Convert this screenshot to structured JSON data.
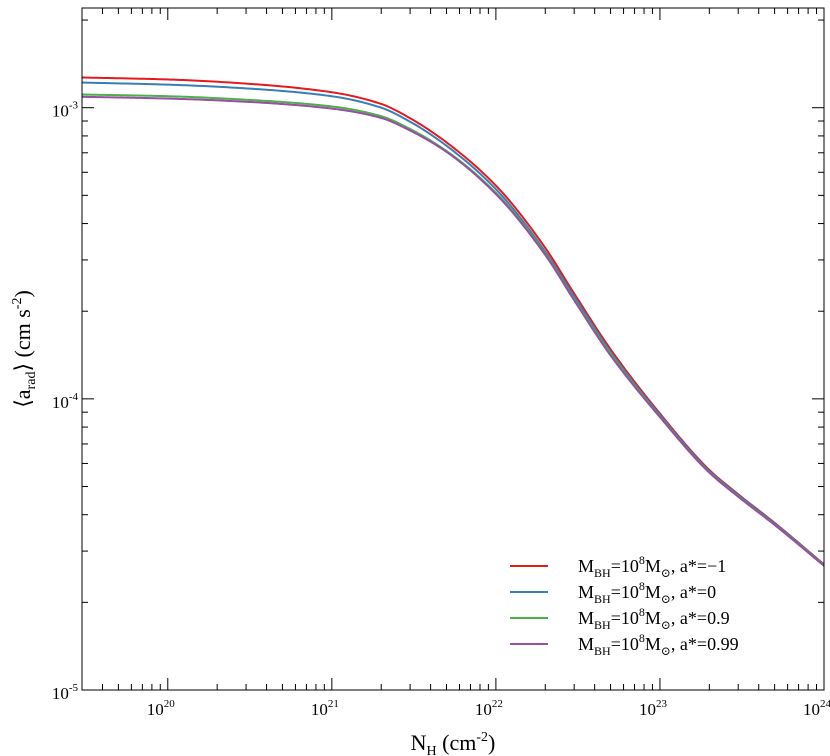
{
  "chart_data": {
    "type": "line",
    "title": "",
    "xscale": "log",
    "yscale": "log",
    "xlim": [
      3e+19,
      1e+24
    ],
    "ylim": [
      1e-05,
      0.0022
    ],
    "grid": false,
    "legend_position": "bottom-right",
    "xlabel": {
      "base": "N",
      "sub": "H",
      "rest": " (cm",
      "sup": "-2",
      "end": ")"
    },
    "ylabel": {
      "open": "⟨",
      "base": "a",
      "sub": "rad",
      "close": "⟩",
      "rest": " (cm s",
      "sup": "-2",
      "end": ")"
    },
    "xticks": [
      {
        "value": 1e+20,
        "base": "10",
        "exp": "20"
      },
      {
        "value": 1e+21,
        "base": "10",
        "exp": "21"
      },
      {
        "value": 1e+22,
        "base": "10",
        "exp": "22"
      },
      {
        "value": 1e+23,
        "base": "10",
        "exp": "23"
      },
      {
        "value": 1e+24,
        "base": "10",
        "exp": "24"
      }
    ],
    "yticks": [
      {
        "value": 1e-05,
        "base": "10",
        "exp": "-5"
      },
      {
        "value": 0.0001,
        "base": "10",
        "exp": "-4"
      },
      {
        "value": 0.001,
        "base": "10",
        "exp": "-3"
      }
    ],
    "x": [
      3e+19,
      1e+20,
      3e+20,
      1e+21,
      2e+21,
      3e+21,
      5e+21,
      1e+22,
      2e+22,
      3e+22,
      5e+22,
      1e+23,
      2e+23,
      3e+23,
      5e+23,
      1e+24
    ],
    "series": [
      {
        "name": "M_BH=10^8 M_sun, a*=-1",
        "color": "#e41a1c",
        "legend": {
          "m": "M",
          "m_sub": "BH",
          "eq": "=10",
          "exp": "8",
          "msun": "M",
          "sun": "⊙",
          "spin": ", a*=−1"
        },
        "values": [
          0.00127,
          0.00125,
          0.00121,
          0.00113,
          0.00103,
          0.00092,
          0.00076,
          0.00054,
          0.00033,
          0.00023,
          0.000148,
          8.9e-05,
          5.7e-05,
          4.7e-05,
          3.75e-05,
          2.7e-05
        ]
      },
      {
        "name": "M_BH=10^8 M_sun, a*=0",
        "color": "#377eb8",
        "legend": {
          "m": "M",
          "m_sub": "BH",
          "eq": "=10",
          "exp": "8",
          "msun": "M",
          "sun": "⊙",
          "spin": ", a*=0"
        },
        "values": [
          0.00122,
          0.0012,
          0.001165,
          0.001095,
          0.001,
          0.000895,
          0.00074,
          0.000525,
          0.00032,
          0.000225,
          0.000145,
          8.8e-05,
          5.65e-05,
          4.67e-05,
          3.73e-05,
          2.69e-05
        ]
      },
      {
        "name": "M_BH=10^8 M_sun, a*=0.9",
        "color": "#4daf4a",
        "legend": {
          "m": "M",
          "m_sub": "BH",
          "eq": "=10",
          "exp": "8",
          "msun": "M",
          "sun": "⊙",
          "spin": ", a*=0.9"
        },
        "values": [
          0.00111,
          0.001095,
          0.001065,
          0.00101,
          0.000935,
          0.000845,
          0.00071,
          0.00051,
          0.000315,
          0.00022,
          0.000143,
          8.7e-05,
          5.6e-05,
          4.63e-05,
          3.7e-05,
          2.68e-05
        ]
      },
      {
        "name": "M_BH=10^8 M_sun, a*=0.99",
        "color": "#984ea3",
        "legend": {
          "m": "M",
          "m_sub": "BH",
          "eq": "=10",
          "exp": "8",
          "msun": "M",
          "sun": "⊙",
          "spin": ", a*=0.99"
        },
        "values": [
          0.00109,
          0.001075,
          0.001048,
          0.000993,
          0.000922,
          0.000835,
          0.000705,
          0.000505,
          0.000312,
          0.000218,
          0.000141,
          8.65e-05,
          5.58e-05,
          4.61e-05,
          3.69e-05,
          2.67e-05
        ]
      }
    ]
  }
}
